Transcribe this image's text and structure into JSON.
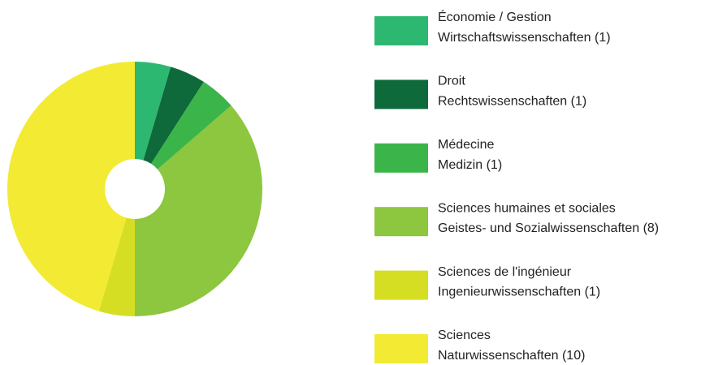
{
  "chart_data": {
    "type": "donut",
    "categories": [
      {
        "name": "Économie / Gestion",
        "subname": "Wirtschaftswissenschaften"
      },
      {
        "name": "Droit",
        "subname": "Rechtswissenschaften"
      },
      {
        "name": "Médecine",
        "subname": "Medizin"
      },
      {
        "name": "Sciences humaines et sociales",
        "subname": "Geistes- und Sozialwissenschaften"
      },
      {
        "name": "Sciences de l'ingénieur",
        "subname": "Ingenieurwissenschaften"
      },
      {
        "name": "Sciences",
        "subname": "Naturwissenschaften"
      }
    ],
    "values": [
      1,
      1,
      1,
      8,
      1,
      10
    ],
    "value_labels": [
      "(1)",
      "(1)",
      "(1)",
      "(8)",
      "(1)",
      "(10)"
    ],
    "colors": [
      "#2db872",
      "#0e6a3a",
      "#3bb54a",
      "#8dc63f",
      "#d6de23",
      "#f3ea33"
    ],
    "legend": "right"
  }
}
